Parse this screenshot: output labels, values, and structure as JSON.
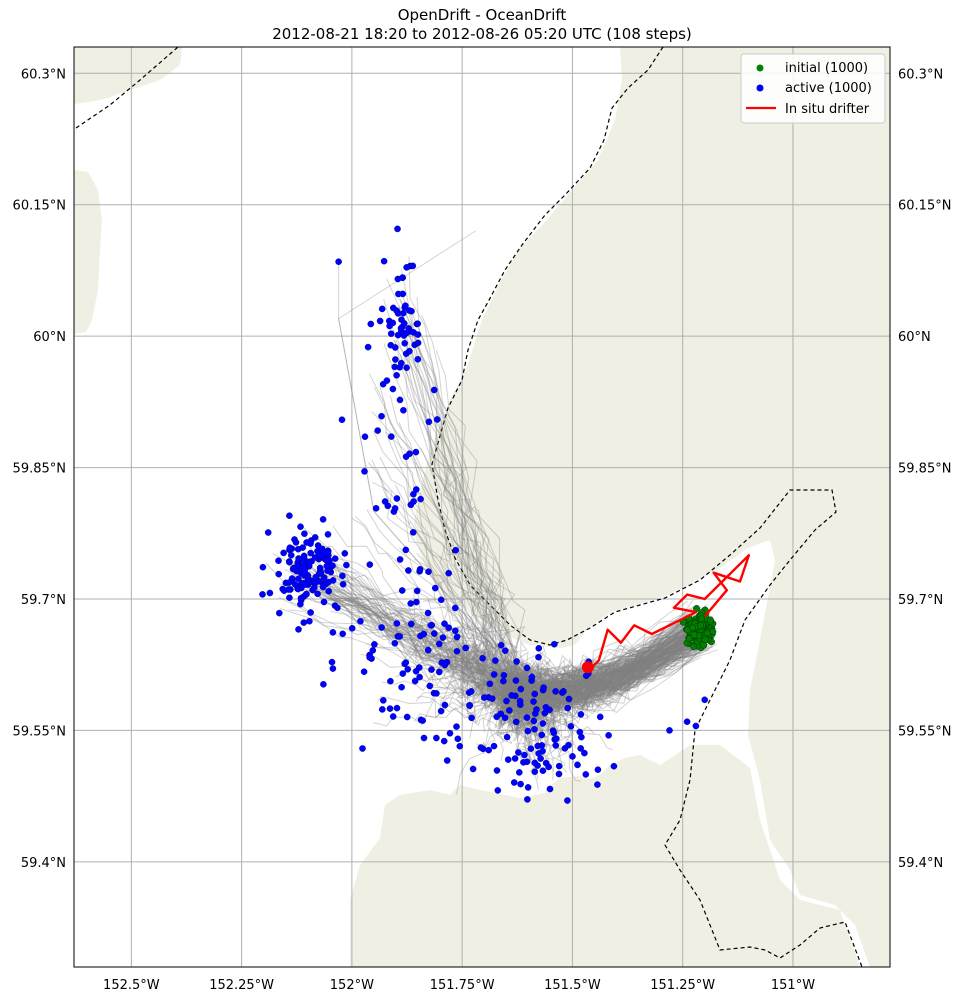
{
  "title": {
    "line1": "OpenDrift - OceanDrift",
    "line2": "2012-08-21 18:20 to 2012-08-26 05:20 UTC (108 steps)"
  },
  "axes": {
    "lon_ticks": [
      {
        "value": -152.5,
        "label": "152.5°W"
      },
      {
        "value": -152.25,
        "label": "152.25°W"
      },
      {
        "value": -152.0,
        "label": "152°W"
      },
      {
        "value": -151.75,
        "label": "151.75°W"
      },
      {
        "value": -151.5,
        "label": "151.5°W"
      },
      {
        "value": -151.25,
        "label": "151.25°W"
      },
      {
        "value": -151.0,
        "label": "151°W"
      }
    ],
    "lat_ticks": [
      {
        "value": 60.3,
        "label": "60.3°N"
      },
      {
        "value": 60.15,
        "label": "60.15°N"
      },
      {
        "value": 60.0,
        "label": "60°N"
      },
      {
        "value": 59.85,
        "label": "59.85°N"
      },
      {
        "value": 59.7,
        "label": "59.7°N"
      },
      {
        "value": 59.55,
        "label": "59.55°N"
      },
      {
        "value": 59.4,
        "label": "59.4°N"
      }
    ],
    "lon_range": [
      -152.63,
      -150.78
    ],
    "lat_range": [
      59.28,
      60.33
    ],
    "grid": true
  },
  "legend": {
    "placement": "top-right",
    "entries": [
      {
        "label": "initial (1000)",
        "color": "#008000",
        "marker": "dot"
      },
      {
        "label": "active (1000)",
        "color": "#0000ff",
        "marker": "dot"
      },
      {
        "label": "In situ drifter",
        "color": "#ff0000",
        "marker": "line"
      }
    ]
  },
  "colors": {
    "land": "#efefe4",
    "water": "#ffffff",
    "trajectory": "#808080",
    "initial": "#008000",
    "active": "#0000ff",
    "drifter": "#ff0000",
    "boundary": "#000000",
    "grid": "#b0b0b0"
  },
  "chart_data": {
    "type": "scatter",
    "elements": [
      "particle trajectories",
      "initial positions",
      "active positions",
      "in situ drifter track"
    ],
    "initial_count": 1000,
    "active_count": 1000,
    "steps": 108,
    "initial_center": {
      "lon": -151.21,
      "lat": 59.665
    },
    "drifter_track": [
      [
        -151.2,
        59.68
      ],
      [
        -151.15,
        59.71
      ],
      [
        -151.18,
        59.73
      ],
      [
        -151.12,
        59.72
      ],
      [
        -151.1,
        59.75
      ],
      [
        -151.14,
        59.73
      ],
      [
        -151.2,
        59.7
      ],
      [
        -151.24,
        59.705
      ],
      [
        -151.27,
        59.69
      ],
      [
        -151.22,
        59.685
      ],
      [
        -151.28,
        59.67
      ],
      [
        -151.32,
        59.66
      ],
      [
        -151.36,
        59.67
      ],
      [
        -151.39,
        59.65
      ],
      [
        -151.42,
        59.665
      ],
      [
        -151.44,
        59.63
      ],
      [
        -151.46,
        59.62
      ]
    ],
    "drifter_end": {
      "lon": -151.465,
      "lat": 59.622
    }
  }
}
